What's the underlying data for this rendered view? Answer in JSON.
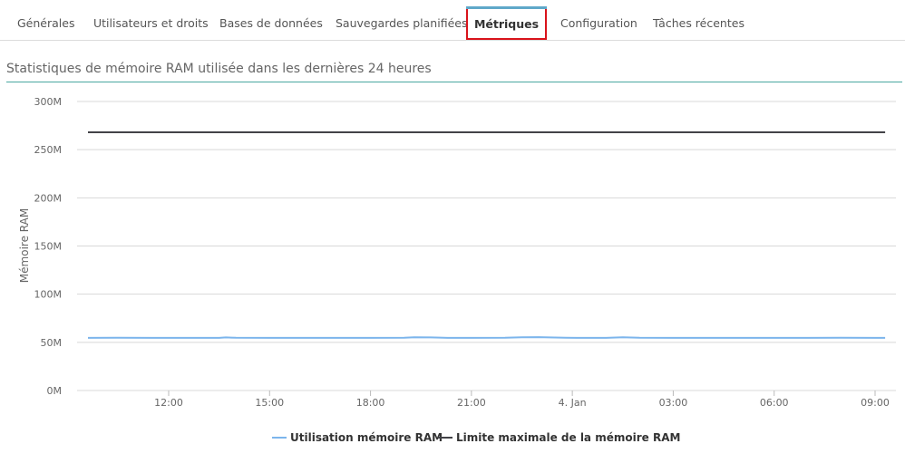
{
  "tabs": [
    {
      "label": "Générales",
      "active": false
    },
    {
      "label": "Utilisateurs et droits",
      "active": false
    },
    {
      "label": "Bases de données",
      "active": false
    },
    {
      "label": "Sauvegardes planifiées",
      "active": false
    },
    {
      "label": "Métriques",
      "active": true
    },
    {
      "label": "Configuration",
      "active": false
    },
    {
      "label": "Tâches récentes",
      "active": false
    }
  ],
  "section": {
    "title": "Statistiques de mémoire RAM utilisée dans les dernières 24 heures"
  },
  "colors": {
    "usage": "#7cb5ec",
    "limit": "#434348",
    "grid": "#d8d8d8",
    "tab_active_border": "#d9131b",
    "tab_active_top": "#5fa8c9",
    "title_rule": "#4aa8a0"
  },
  "chart_data": {
    "type": "line",
    "ylabel": "Mémoire RAM",
    "ylim": [
      0,
      300
    ],
    "y_ticks": [
      {
        "value": 0,
        "label": "0M"
      },
      {
        "value": 50,
        "label": "50M"
      },
      {
        "value": 100,
        "label": "100M"
      },
      {
        "value": 150,
        "label": "150M"
      },
      {
        "value": 200,
        "label": "200M"
      },
      {
        "value": 250,
        "label": "250M"
      },
      {
        "value": 300,
        "label": "300M"
      }
    ],
    "x_range_hours": [
      9.5,
      33.3
    ],
    "x_ticks": [
      {
        "hour": 12,
        "label": "12:00"
      },
      {
        "hour": 15,
        "label": "15:00"
      },
      {
        "hour": 18,
        "label": "18:00"
      },
      {
        "hour": 21,
        "label": "21:00"
      },
      {
        "hour": 24,
        "label": "4. Jan"
      },
      {
        "hour": 27,
        "label": "03:00"
      },
      {
        "hour": 30,
        "label": "06:00"
      },
      {
        "hour": 33,
        "label": "09:00"
      }
    ],
    "grid": true,
    "legend_position": "bottom-center",
    "series": [
      {
        "name": "Utilisation mémoire RAM",
        "x": [
          9.6,
          10.5,
          11.5,
          12.5,
          13.5,
          13.7,
          14.0,
          15.0,
          16.0,
          17.0,
          18.0,
          19.0,
          19.3,
          19.8,
          20.3,
          21.0,
          22.0,
          22.5,
          23.0,
          23.8,
          24.5,
          25.0,
          25.5,
          26.0,
          27.0,
          28.0,
          29.0,
          30.0,
          31.0,
          32.0,
          33.0,
          33.3
        ],
        "values": [
          54.6,
          54.7,
          54.6,
          54.6,
          54.6,
          55.1,
          54.7,
          54.6,
          54.6,
          54.6,
          54.6,
          54.7,
          55.2,
          55.1,
          54.6,
          54.6,
          54.7,
          55.3,
          55.4,
          54.7,
          54.6,
          54.6,
          55.3,
          54.7,
          54.6,
          54.6,
          54.6,
          54.6,
          54.6,
          54.7,
          54.6,
          54.6
        ]
      },
      {
        "name": "Limite maximale de la mémoire RAM",
        "x": [
          9.6,
          33.3
        ],
        "values": [
          268,
          268
        ]
      }
    ]
  }
}
